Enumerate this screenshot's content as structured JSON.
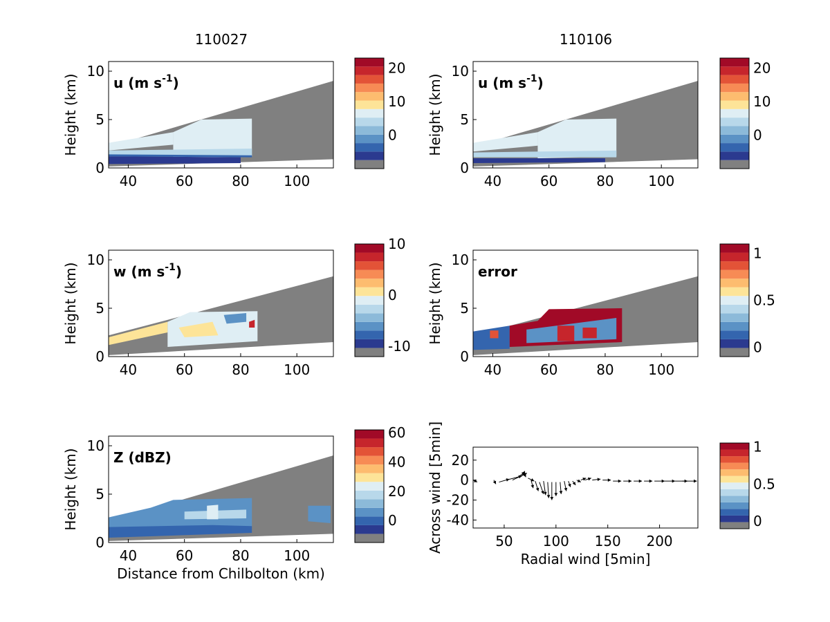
{
  "figure": {
    "col_titles": [
      "110027",
      "110106"
    ],
    "common_xlabel": "Distance from Chilbolton (km)",
    "colors": {
      "gray": "#808080",
      "palette": [
        "#2b3a8f",
        "#3465ae",
        "#5b92c5",
        "#8cbad9",
        "#b8d8ea",
        "#dfeef4",
        "#fde498",
        "#fdbc6f",
        "#f78b55",
        "#e35337",
        "#c6252c",
        "#a10a27"
      ]
    }
  },
  "chart_data": [
    {
      "type": "heatmap",
      "id": "u1",
      "field_label": "u (m s",
      "field_sup": "-1",
      "field_close": ")",
      "ylabel": "Height (km)",
      "xlim": [
        33,
        113
      ],
      "ylim": [
        0,
        11
      ],
      "xticks": [
        "40",
        "60",
        "80",
        "100"
      ],
      "yticks": [
        "0",
        "5",
        "10"
      ],
      "colorbar": {
        "range": [
          -10,
          23
        ],
        "ticks": [
          "0",
          "10",
          "20"
        ]
      },
      "regions": [
        {
          "desc": "shallow scan, light blue",
          "color": 5,
          "poly": [
            [
              33,
              2.6
            ],
            [
              56,
              3.7
            ],
            [
              56,
              2.4
            ],
            [
              33,
              1.8
            ]
          ]
        },
        {
          "desc": "echo top region",
          "color": 5,
          "poly": [
            [
              56,
              3.7
            ],
            [
              66,
              5.0
            ],
            [
              84,
              5.1
            ],
            [
              84,
              1.2
            ],
            [
              56,
              1.0
            ],
            [
              56,
              2.6
            ]
          ]
        },
        {
          "desc": "mid-level blue band",
          "color": 4,
          "poly": [
            [
              33,
              1.8
            ],
            [
              84,
              2.0
            ],
            [
              84,
              1.2
            ],
            [
              33,
              1.2
            ]
          ]
        },
        {
          "desc": "low-level jet",
          "color": 0,
          "poly": [
            [
              33,
              1.2
            ],
            [
              80,
              1.1
            ],
            [
              80,
              0.5
            ],
            [
              33,
              0.4
            ]
          ]
        },
        {
          "desc": "low-level jet edge",
          "color": 1,
          "poly": [
            [
              33,
              1.4
            ],
            [
              84,
              1.3
            ],
            [
              84,
              1.1
            ],
            [
              33,
              1.2
            ]
          ]
        }
      ]
    },
    {
      "type": "heatmap",
      "id": "u2",
      "field_label": "u (m s",
      "field_sup": "-1",
      "field_close": ")",
      "ylabel": "Height (km)",
      "xlim": [
        33,
        113
      ],
      "ylim": [
        0,
        11
      ],
      "xticks": [
        "40",
        "60",
        "80",
        "100"
      ],
      "yticks": [
        "0",
        "5",
        "10"
      ],
      "colorbar": {
        "range": [
          -10,
          23
        ],
        "ticks": [
          "0",
          "10",
          "20"
        ]
      },
      "regions": [
        {
          "desc": "shallow scan",
          "color": 5,
          "poly": [
            [
              33,
              2.6
            ],
            [
              56,
              3.7
            ],
            [
              56,
              2.3
            ],
            [
              33,
              1.7
            ]
          ]
        },
        {
          "desc": "echo top region",
          "color": 5,
          "poly": [
            [
              56,
              3.7
            ],
            [
              66,
              5.0
            ],
            [
              84,
              5.1
            ],
            [
              84,
              1.2
            ],
            [
              56,
              1.0
            ],
            [
              56,
              2.6
            ]
          ]
        },
        {
          "desc": "mid band",
          "color": 4,
          "poly": [
            [
              33,
              1.6
            ],
            [
              84,
              1.8
            ],
            [
              84,
              1.1
            ],
            [
              33,
              1.1
            ]
          ]
        },
        {
          "desc": "low-level jet",
          "color": 0,
          "poly": [
            [
              33,
              1.0
            ],
            [
              80,
              1.0
            ],
            [
              80,
              0.6
            ],
            [
              33,
              0.5
            ]
          ]
        }
      ]
    },
    {
      "type": "heatmap",
      "id": "w",
      "field_label": "w (m s",
      "field_sup": "-1",
      "field_close": ")",
      "ylabel": "Height (km)",
      "xlim": [
        33,
        113
      ],
      "ylim": [
        0,
        11
      ],
      "xticks": [
        "40",
        "60",
        "80",
        "100"
      ],
      "yticks": [
        "0",
        "5",
        "10"
      ],
      "colorbar": {
        "range": [
          -12,
          10
        ],
        "ticks": [
          "-10",
          "0",
          "10"
        ]
      },
      "regions": [
        {
          "desc": "weak updraft",
          "color": 6,
          "poly": [
            [
              33,
              2.0
            ],
            [
              54,
              3.6
            ],
            [
              54,
              2.5
            ],
            [
              33,
              1.2
            ]
          ]
        },
        {
          "desc": "near-zero field",
          "color": 5,
          "poly": [
            [
              54,
              3.6
            ],
            [
              62,
              4.6
            ],
            [
              86,
              4.7
            ],
            [
              86,
              1.6
            ],
            [
              54,
              1.0
            ],
            [
              54,
              2.6
            ]
          ]
        },
        {
          "desc": "updraft patch",
          "color": 6,
          "poly": [
            [
              58,
              3.0
            ],
            [
              70,
              3.6
            ],
            [
              72,
              2.2
            ],
            [
              60,
              2.0
            ]
          ]
        },
        {
          "desc": "downdraft patch",
          "color": 2,
          "poly": [
            [
              74,
              4.3
            ],
            [
              82,
              4.5
            ],
            [
              82,
              3.6
            ],
            [
              75,
              3.4
            ]
          ]
        },
        {
          "desc": "strong updraft core",
          "color": 10,
          "poly": [
            [
              83,
              3.6
            ],
            [
              85,
              3.8
            ],
            [
              85,
              3.0
            ],
            [
              83,
              3.0
            ]
          ]
        }
      ]
    },
    {
      "type": "heatmap",
      "id": "err",
      "field_label": "error",
      "ylabel": "Height (km)",
      "xlim": [
        33,
        113
      ],
      "ylim": [
        0,
        11
      ],
      "xticks": [
        "40",
        "60",
        "80",
        "100"
      ],
      "yticks": [
        "0",
        "5",
        "10"
      ],
      "colorbar": {
        "range": [
          -0.1,
          1.1
        ],
        "ticks": [
          "0",
          "0.5",
          "1"
        ]
      },
      "regions": [
        {
          "desc": "low error core",
          "color": 1,
          "poly": [
            [
              33,
              2.6
            ],
            [
              46,
              3.2
            ],
            [
              46,
              0.8
            ],
            [
              33,
              0.7
            ]
          ]
        },
        {
          "desc": "high error rim",
          "color": 11,
          "poly": [
            [
              46,
              3.2
            ],
            [
              56,
              3.7
            ],
            [
              60,
              4.9
            ],
            [
              86,
              5.0
            ],
            [
              86,
              1.5
            ],
            [
              46,
              1.0
            ]
          ]
        },
        {
          "desc": "inner low error",
          "color": 2,
          "poly": [
            [
              52,
              2.8
            ],
            [
              84,
              4.0
            ],
            [
              84,
              1.8
            ],
            [
              52,
              1.4
            ]
          ]
        },
        {
          "desc": "error ring 1",
          "color": 10,
          "poly": [
            [
              63,
              3.2
            ],
            [
              69,
              3.2
            ],
            [
              69,
              1.6
            ],
            [
              63,
              1.6
            ]
          ]
        },
        {
          "desc": "error ring 2",
          "color": 10,
          "poly": [
            [
              72,
              3.0
            ],
            [
              77,
              3.0
            ],
            [
              77,
              1.9
            ],
            [
              72,
              1.9
            ]
          ]
        },
        {
          "desc": "error spot",
          "color": 9,
          "poly": [
            [
              39,
              2.7
            ],
            [
              42,
              2.7
            ],
            [
              42,
              1.9
            ],
            [
              39,
              1.9
            ]
          ]
        }
      ]
    },
    {
      "type": "heatmap",
      "id": "z",
      "field_label": "Z (dBZ)",
      "ylabel": "Height (km)",
      "xlabel": "Distance from Chilbolton (km)",
      "xlim": [
        33,
        113
      ],
      "ylim": [
        0,
        11
      ],
      "xticks": [
        "40",
        "60",
        "80",
        "100"
      ],
      "yticks": [
        "0",
        "5",
        "10"
      ],
      "colorbar": {
        "range": [
          -15,
          62
        ],
        "ticks": [
          "0",
          "20",
          "40",
          "60"
        ]
      },
      "regions": [
        {
          "desc": "echo body",
          "color": 2,
          "poly": [
            [
              33,
              2.6
            ],
            [
              48,
              3.6
            ],
            [
              56,
              4.4
            ],
            [
              84,
              4.6
            ],
            [
              84,
              1.6
            ],
            [
              33,
              0.6
            ]
          ]
        },
        {
          "desc": "weaker echo",
          "color": 1,
          "poly": [
            [
              33,
              1.6
            ],
            [
              70,
              1.8
            ],
            [
              84,
              1.7
            ],
            [
              84,
              1.0
            ],
            [
              33,
              0.5
            ]
          ]
        },
        {
          "desc": "bright band",
          "color": 4,
          "poly": [
            [
              60,
              3.2
            ],
            [
              82,
              3.4
            ],
            [
              82,
              2.5
            ],
            [
              60,
              2.4
            ]
          ]
        },
        {
          "desc": "stronger cores",
          "color": 5,
          "poly": [
            [
              68,
              3.8
            ],
            [
              72,
              3.9
            ],
            [
              72,
              2.4
            ],
            [
              68,
              2.4
            ]
          ]
        },
        {
          "desc": "distant echo",
          "color": 2,
          "poly": [
            [
              104,
              3.8
            ],
            [
              112,
              3.8
            ],
            [
              112,
              2.0
            ],
            [
              104,
              2.2
            ]
          ]
        }
      ]
    },
    {
      "type": "scatter",
      "id": "quiver",
      "xlabel": "Radial wind [5min]",
      "ylabel": "Across wind [5min]",
      "xlim": [
        20,
        237
      ],
      "ylim": [
        -48,
        33
      ],
      "xticks": [
        "50",
        "100",
        "150",
        "200"
      ],
      "yticks": [
        "20",
        "0",
        "-20",
        "-40"
      ],
      "colorbar": {
        "range": [
          -0.1,
          1.05
        ],
        "ticks": [
          "0",
          "0.5",
          "1"
        ]
      },
      "arrows": [
        [
          20,
          0,
          4,
          -2
        ],
        [
          40,
          0,
          2,
          -4
        ],
        [
          45,
          -2,
          10,
          3
        ],
        [
          52,
          0,
          15,
          4
        ],
        [
          58,
          0,
          14,
          7
        ],
        [
          62,
          2,
          8,
          6
        ],
        [
          67,
          4,
          3,
          5
        ],
        [
          70,
          5,
          1,
          -2
        ],
        [
          73,
          2,
          6,
          -3
        ],
        [
          76,
          0,
          2,
          -8
        ],
        [
          80,
          -1,
          3,
          -10
        ],
        [
          84,
          -2,
          4,
          -12
        ],
        [
          88,
          -1,
          2,
          -14
        ],
        [
          92,
          -2,
          1,
          -16
        ],
        [
          96,
          -2,
          0,
          -18
        ],
        [
          100,
          -2,
          0,
          -14
        ],
        [
          104,
          -2,
          1,
          -12
        ],
        [
          108,
          -1,
          2,
          -10
        ],
        [
          112,
          -1,
          2,
          -6
        ],
        [
          116,
          -1,
          3,
          -4
        ],
        [
          120,
          0,
          4,
          -2
        ],
        [
          124,
          0,
          5,
          2
        ],
        [
          128,
          0,
          6,
          2
        ],
        [
          135,
          0,
          8,
          1
        ],
        [
          145,
          0,
          8,
          0
        ],
        [
          155,
          -1,
          8,
          0
        ],
        [
          165,
          -1,
          8,
          0
        ],
        [
          175,
          -1,
          8,
          0
        ],
        [
          185,
          -1,
          8,
          0
        ],
        [
          195,
          -1,
          10,
          0
        ],
        [
          205,
          -1,
          10,
          0
        ],
        [
          215,
          -1,
          12,
          0
        ],
        [
          222,
          -1,
          14,
          0
        ]
      ]
    }
  ]
}
